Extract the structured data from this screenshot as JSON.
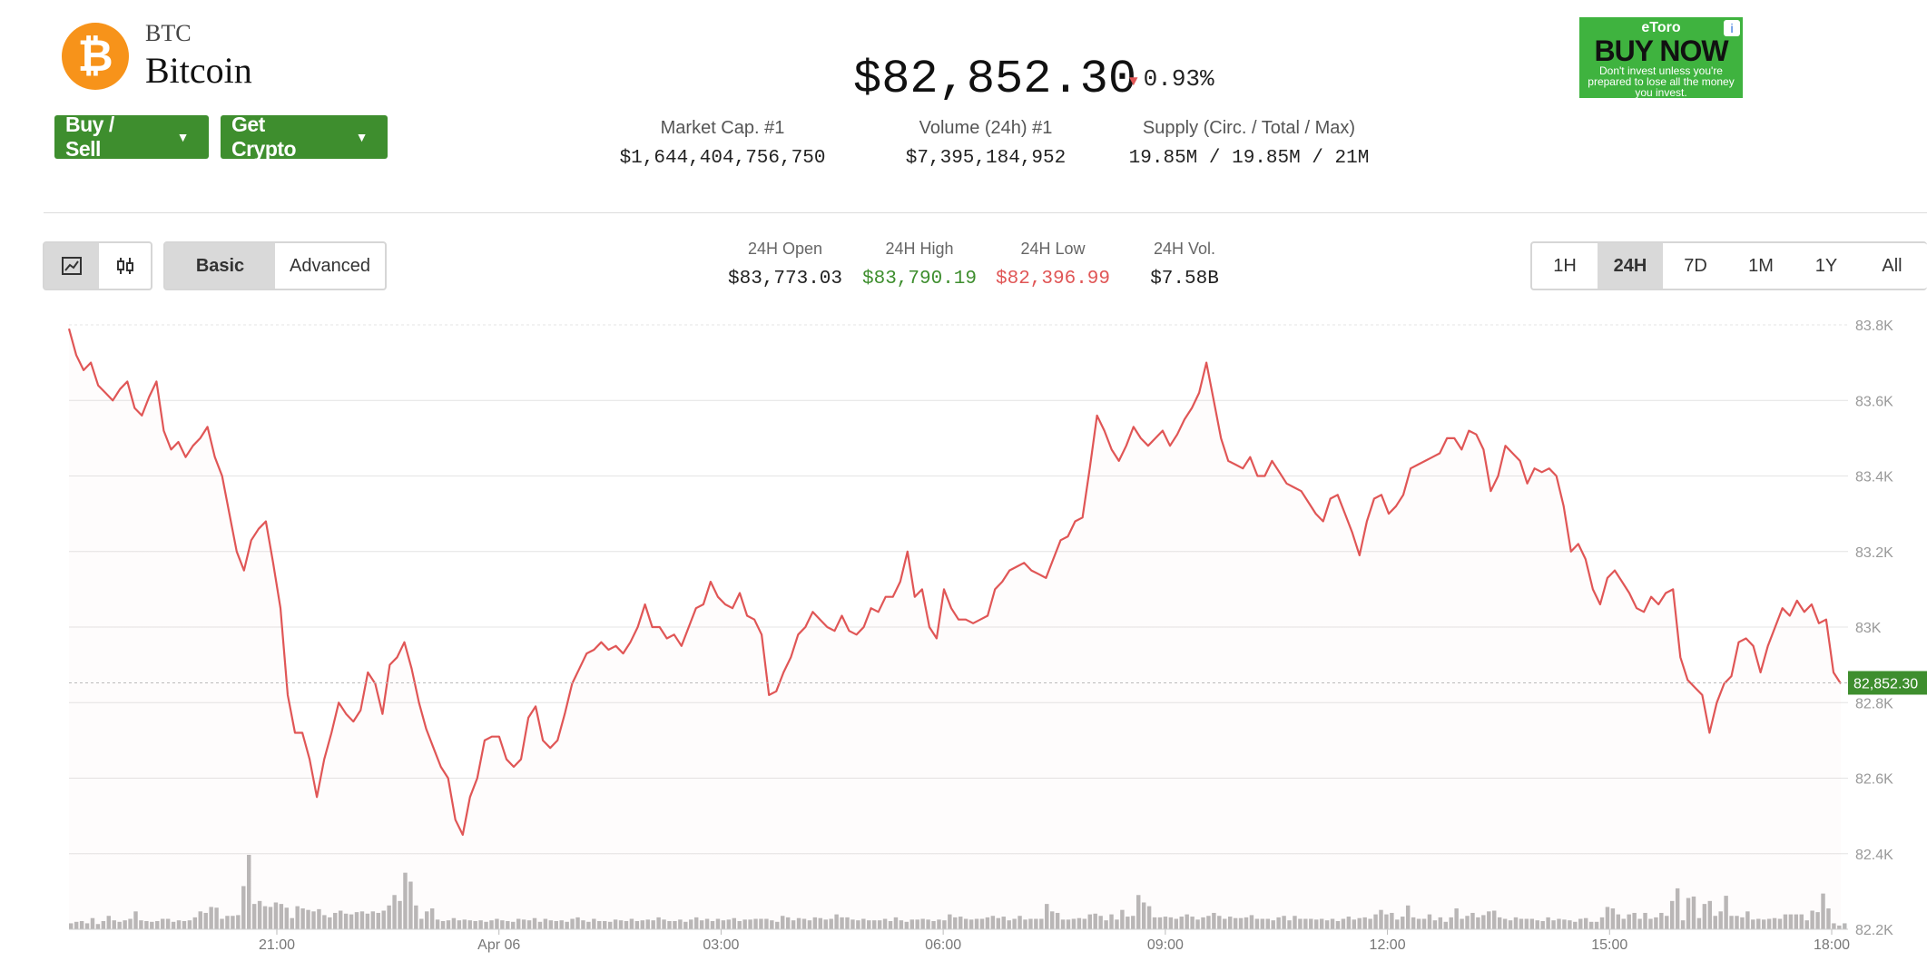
{
  "coin": {
    "symbol": "BTC",
    "name": "Bitcoin",
    "logo_glyph": "₿",
    "brand_color": "#f7931a"
  },
  "actions": {
    "buy_sell": "Buy / Sell",
    "get_crypto": "Get Crypto"
  },
  "price": {
    "value": "$82,852.30",
    "change": "0.93%",
    "direction": "down"
  },
  "stats": [
    {
      "label": "Market Cap. #1",
      "value": "$1,644,404,756,750"
    },
    {
      "label": "Volume (24h) #1",
      "value": "$7,395,184,952"
    },
    {
      "label": "Supply (Circ. / Total / Max)",
      "value": "19.85M / 19.85M / 21M"
    }
  ],
  "ad": {
    "brand": "eToro",
    "cta": "BUY NOW",
    "disclaimer": "Don't invest unless you're prepared to lose all the money you invest.",
    "info_glyph": "i"
  },
  "chart_controls": {
    "chart_type_icons": [
      "line-chart-icon",
      "candlestick-icon"
    ],
    "modes": [
      "Basic",
      "Advanced"
    ],
    "active_mode": "Basic",
    "ranges": [
      "1H",
      "24H",
      "7D",
      "1M",
      "1Y",
      "All"
    ],
    "active_range": "24H"
  },
  "ohlc": [
    {
      "label": "24H Open",
      "value": "$83,773.03",
      "color": "#222222"
    },
    {
      "label": "24H High",
      "value": "$83,790.19",
      "color": "#3e8e2e"
    },
    {
      "label": "24H Low",
      "value": "$82,396.99",
      "color": "#e05656"
    },
    {
      "label": "24H Vol.",
      "value": "$7.58B",
      "color": "#222222"
    }
  ],
  "chart_data": {
    "type": "line",
    "line_color": "#e05656",
    "ylim": [
      82200,
      83800
    ],
    "y_ticks": [
      {
        "value": 83800,
        "label": "83.8K"
      },
      {
        "value": 83600,
        "label": "83.6K"
      },
      {
        "value": 83400,
        "label": "83.4K"
      },
      {
        "value": 83200,
        "label": "83.2K"
      },
      {
        "value": 83000,
        "label": "83K"
      },
      {
        "value": 82800,
        "label": "82.8K"
      },
      {
        "value": 82600,
        "label": "82.6K"
      },
      {
        "value": 82400,
        "label": "82.4K"
      },
      {
        "value": 82200,
        "label": "82.2K"
      }
    ],
    "x_ticks": [
      "21:00",
      "Apr 06",
      "03:00",
      "06:00",
      "09:00",
      "12:00",
      "15:00",
      "18:00"
    ],
    "current_price_label": "82,852.30",
    "current_price": 82852.3,
    "grid": true,
    "price_points": [
      83790,
      83720,
      83680,
      83700,
      83640,
      83620,
      83600,
      83630,
      83650,
      83580,
      83560,
      83610,
      83650,
      83520,
      83470,
      83490,
      83450,
      83480,
      83500,
      83530,
      83450,
      83400,
      83300,
      83200,
      83150,
      83230,
      83260,
      83280,
      83170,
      83050,
      82820,
      82720,
      82720,
      82650,
      82550,
      82650,
      82720,
      82800,
      82770,
      82750,
      82780,
      82880,
      82850,
      82770,
      82900,
      82920,
      82960,
      82890,
      82800,
      82730,
      82680,
      82630,
      82600,
      82490,
      82450,
      82550,
      82600,
      82700,
      82710,
      82710,
      82650,
      82630,
      82650,
      82760,
      82790,
      82700,
      82680,
      82700,
      82770,
      82850,
      82890,
      82930,
      82940,
      82960,
      82940,
      82950,
      82930,
      82960,
      83000,
      83060,
      83000,
      83000,
      82970,
      82980,
      82950,
      83000,
      83050,
      83060,
      83120,
      83080,
      83060,
      83050,
      83090,
      83030,
      83020,
      82980,
      82820,
      82830,
      82880,
      82920,
      82980,
      83000,
      83040,
      83020,
      83000,
      82990,
      83030,
      82990,
      82980,
      83000,
      83050,
      83040,
      83080,
      83080,
      83120,
      83200,
      83080,
      83100,
      83000,
      82970,
      83100,
      83050,
      83020,
      83020,
      83010,
      83020,
      83030,
      83100,
      83120,
      83150,
      83160,
      83170,
      83150,
      83140,
      83130,
      83180,
      83230,
      83240,
      83280,
      83290,
      83420,
      83560,
      83520,
      83470,
      83440,
      83480,
      83530,
      83500,
      83480,
      83500,
      83520,
      83480,
      83510,
      83550,
      83580,
      83620,
      83700,
      83600,
      83500,
      83440,
      83430,
      83420,
      83450,
      83400,
      83400,
      83440,
      83410,
      83380,
      83370,
      83360,
      83330,
      83300,
      83280,
      83340,
      83350,
      83300,
      83250,
      83190,
      83280,
      83340,
      83350,
      83300,
      83320,
      83350,
      83420,
      83430,
      83440,
      83450,
      83460,
      83500,
      83500,
      83470,
      83520,
      83510,
      83470,
      83360,
      83400,
      83480,
      83460,
      83440,
      83380,
      83420,
      83410,
      83420,
      83400,
      83320,
      83200,
      83220,
      83180,
      83100,
      83060,
      83130,
      83150,
      83120,
      83090,
      83050,
      83040,
      83080,
      83060,
      83090,
      83100,
      82920,
      82860,
      82840,
      82820,
      82720,
      82800,
      82850,
      82870,
      82960,
      82970,
      82950,
      82880,
      82950,
      83000,
      83050,
      83030,
      83070,
      83040,
      83060,
      83010,
      83020,
      82880,
      82850
    ],
    "volume_points": [
      8,
      10,
      11,
      8,
      15,
      7,
      11,
      18,
      12,
      10,
      12,
      14,
      24,
      12,
      11,
      10,
      11,
      14,
      14,
      10,
      12,
      11,
      12,
      16,
      24,
      22,
      30,
      29,
      14,
      18,
      18,
      19,
      58,
      100,
      34,
      38,
      31,
      30,
      36,
      34,
      29,
      15,
      31,
      28,
      26,
      24,
      27,
      19,
      16,
      22,
      25,
      21,
      20,
      23,
      24,
      21,
      24,
      22,
      25,
      32,
      46,
      38,
      76,
      64,
      32,
      14,
      24,
      28,
      13,
      11,
      12,
      15,
      12,
      13,
      12,
      11,
      12,
      10,
      12,
      14,
      12,
      11,
      10,
      14,
      13,
      12,
      15,
      10,
      14,
      12,
      11,
      12,
      10,
      14,
      16,
      12,
      10,
      14,
      11,
      11,
      10,
      13,
      12,
      11,
      14,
      11,
      12,
      13,
      12,
      16,
      13,
      11,
      11,
      13,
      10,
      13,
      16,
      12,
      14,
      11,
      14,
      12,
      13,
      15,
      11,
      13,
      13,
      14,
      14,
      14,
      12,
      10,
      18,
      16,
      12,
      15,
      14,
      12,
      16,
      15,
      13,
      14,
      20,
      16,
      16,
      13,
      12,
      14,
      12,
      12,
      12,
      14,
      11,
      16,
      12,
      10,
      13,
      13,
      14,
      13,
      11,
      13,
      12,
      20,
      16,
      17,
      14,
      13,
      14,
      14,
      16,
      18,
      15,
      17,
      12,
      14,
      18,
      13,
      14,
      14,
      14,
      34,
      24,
      22,
      13,
      13,
      14,
      15,
      14,
      20,
      21,
      18,
      12,
      20,
      13,
      26,
      17,
      18,
      46,
      36,
      31,
      16,
      16,
      17,
      16,
      14,
      17,
      20,
      17,
      13,
      16,
      18,
      22,
      18,
      14,
      17,
      15,
      15,
      16,
      19,
      14,
      14,
      14,
      12,
      16,
      18,
      12,
      18,
      14,
      14,
      14,
      13,
      14,
      12,
      14,
      11,
      14,
      17,
      13,
      15,
      16,
      14,
      20,
      26,
      20,
      22,
      13,
      17,
      32,
      16,
      14,
      14,
      20,
      12,
      16,
      10,
      16,
      28,
      14,
      18,
      22,
      16,
      19,
      24,
      25,
      16,
      14,
      12,
      16,
      14,
      14,
      14,
      12,
      11,
      16,
      12,
      14,
      13,
      12,
      10,
      14,
      15,
      10,
      10,
      16,
      30,
      28,
      20,
      14,
      20,
      22,
      14,
      22,
      14,
      16,
      22,
      18,
      38,
      55,
      12,
      42,
      44,
      15,
      34,
      38,
      18,
      24,
      45,
      18,
      18,
      16,
      24,
      13,
      14,
      13,
      14,
      15,
      14,
      20,
      20,
      20,
      20,
      12,
      25,
      23,
      48,
      28,
      8,
      5,
      8
    ]
  }
}
